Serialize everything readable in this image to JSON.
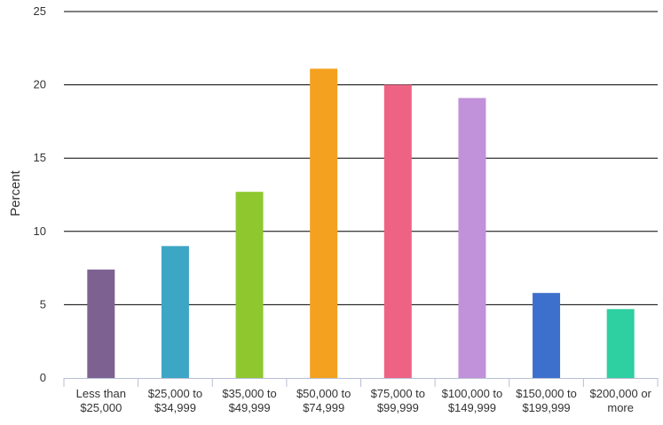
{
  "chart_data": {
    "type": "bar",
    "ylabel": "Percent",
    "xlabel": "",
    "ylim": [
      0,
      25
    ],
    "yticks": [
      "0",
      "5",
      "10",
      "15",
      "20",
      "25"
    ],
    "categories": [
      [
        "Less than",
        "$25,000"
      ],
      [
        "$25,000 to",
        "$34,999"
      ],
      [
        "$35,000 to",
        "$49,999"
      ],
      [
        "$50,000 to",
        "$74,999"
      ],
      [
        "$75,000 to",
        "$99,999"
      ],
      [
        "$100,000 to",
        "$149,999"
      ],
      [
        "$150,000 to",
        "$199,999"
      ],
      [
        "$200,000 or",
        "more"
      ]
    ],
    "values": [
      7.4,
      9.0,
      12.7,
      21.1,
      20.0,
      19.1,
      5.8,
      4.7
    ],
    "colors": [
      "#7d6291",
      "#3ea6c5",
      "#8fc82e",
      "#f4a11f",
      "#ee6383",
      "#c191d9",
      "#3d6fcc",
      "#2ecfa0"
    ],
    "grid": true,
    "legend": "none"
  }
}
